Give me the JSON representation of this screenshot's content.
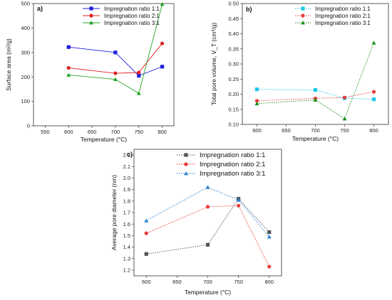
{
  "chart_data": [
    {
      "panel": "a)",
      "type": "line",
      "xlabel": "Temperature (°C)",
      "ylabel": "Surface area (m²/g)",
      "xlim": [
        525,
        825
      ],
      "ylim": [
        0,
        500
      ],
      "xticks": [
        550,
        600,
        650,
        700,
        750,
        800
      ],
      "yticks": [
        0,
        100,
        200,
        300,
        400,
        500
      ],
      "xtick_labels": [
        "550",
        "600",
        "650",
        "700",
        "750",
        "800"
      ],
      "ytick_labels": [
        "0",
        "100",
        "200",
        "300",
        "400",
        "500"
      ],
      "legend_position": "top-right",
      "x": [
        600,
        700,
        750,
        800
      ],
      "series": [
        {
          "name": "Impregnation ratio 1:1",
          "color": "#1f1fdc",
          "marker": "square",
          "values": [
            322,
            300,
            205,
            242
          ]
        },
        {
          "name": "Impregnation ratio 2:1",
          "color": "#e02020",
          "marker": "circle",
          "values": [
            237,
            215,
            218,
            337
          ]
        },
        {
          "name": "Impregnation ratio 3:1",
          "color": "#27a327",
          "marker": "triangle",
          "values": [
            208,
            190,
            133,
            497
          ]
        }
      ]
    },
    {
      "panel": "b)",
      "type": "line",
      "xlabel": "Temperature (°C)",
      "ylabel": "Total pore volume, V_T (cm³/g)",
      "xlim": [
        575,
        825
      ],
      "ylim": [
        0.1,
        0.5
      ],
      "xticks": [
        600,
        650,
        700,
        750,
        800
      ],
      "yticks": [
        0.1,
        0.15,
        0.2,
        0.25,
        0.3,
        0.35,
        0.4,
        0.45,
        0.5
      ],
      "xtick_labels": [
        "600",
        "650",
        "700",
        "750",
        "800"
      ],
      "ytick_labels": [
        "0.10",
        "0.15",
        "0.20",
        "0.25",
        "0.30",
        "0.35",
        "0.40",
        "0.45",
        "0.50"
      ],
      "legend_position": "top-right",
      "x": [
        600,
        700,
        750,
        800
      ],
      "series": [
        {
          "name": "Impregnation ratio 1:1",
          "color": "#1ec8e8",
          "marker": "square",
          "values": [
            0.216,
            0.214,
            0.187,
            0.183
          ]
        },
        {
          "name": "Impregnation ratio 2:1",
          "color": "#e83a3a",
          "marker": "circle",
          "values": [
            0.178,
            0.186,
            0.189,
            0.208
          ]
        },
        {
          "name": "Impregnation ratio 3:1",
          "color": "#1a8f1a",
          "marker": "triangle",
          "values": [
            0.169,
            0.181,
            0.119,
            0.37
          ]
        }
      ]
    },
    {
      "panel": "c)",
      "type": "line",
      "xlabel": "Temperature (°C)",
      "ylabel": "Average pore diameter (nm)",
      "xlim": [
        580,
        820
      ],
      "ylim": [
        1.15,
        2.25
      ],
      "xticks": [
        600,
        650,
        700,
        750,
        800
      ],
      "yticks": [
        1.2,
        1.3,
        1.4,
        1.5,
        1.6,
        1.7,
        1.8,
        1.9,
        2.0,
        2.1,
        2.2
      ],
      "xtick_labels": [
        "600",
        "650",
        "700",
        "750",
        "800"
      ],
      "ytick_labels": [
        "1.2",
        "1.3",
        "1.4",
        "1.5",
        "1.6",
        "1.7",
        "1.8",
        "1.9",
        "2.0",
        "2.1",
        "2.2"
      ],
      "legend_position": "top-right",
      "x": [
        600,
        700,
        750,
        800
      ],
      "series": [
        {
          "name": "Impregnation ratio 1:1",
          "color": "#555555",
          "marker": "square",
          "values": [
            1.34,
            1.42,
            1.82,
            1.53
          ]
        },
        {
          "name": "Impregnation ratio 2:1",
          "color": "#ea3b3b",
          "marker": "circle",
          "values": [
            1.52,
            1.75,
            1.76,
            1.23
          ]
        },
        {
          "name": "Impregnation ratio 3:1",
          "color": "#2a7fd4",
          "marker": "triangle",
          "values": [
            1.63,
            1.92,
            1.81,
            1.49
          ]
        }
      ]
    }
  ]
}
